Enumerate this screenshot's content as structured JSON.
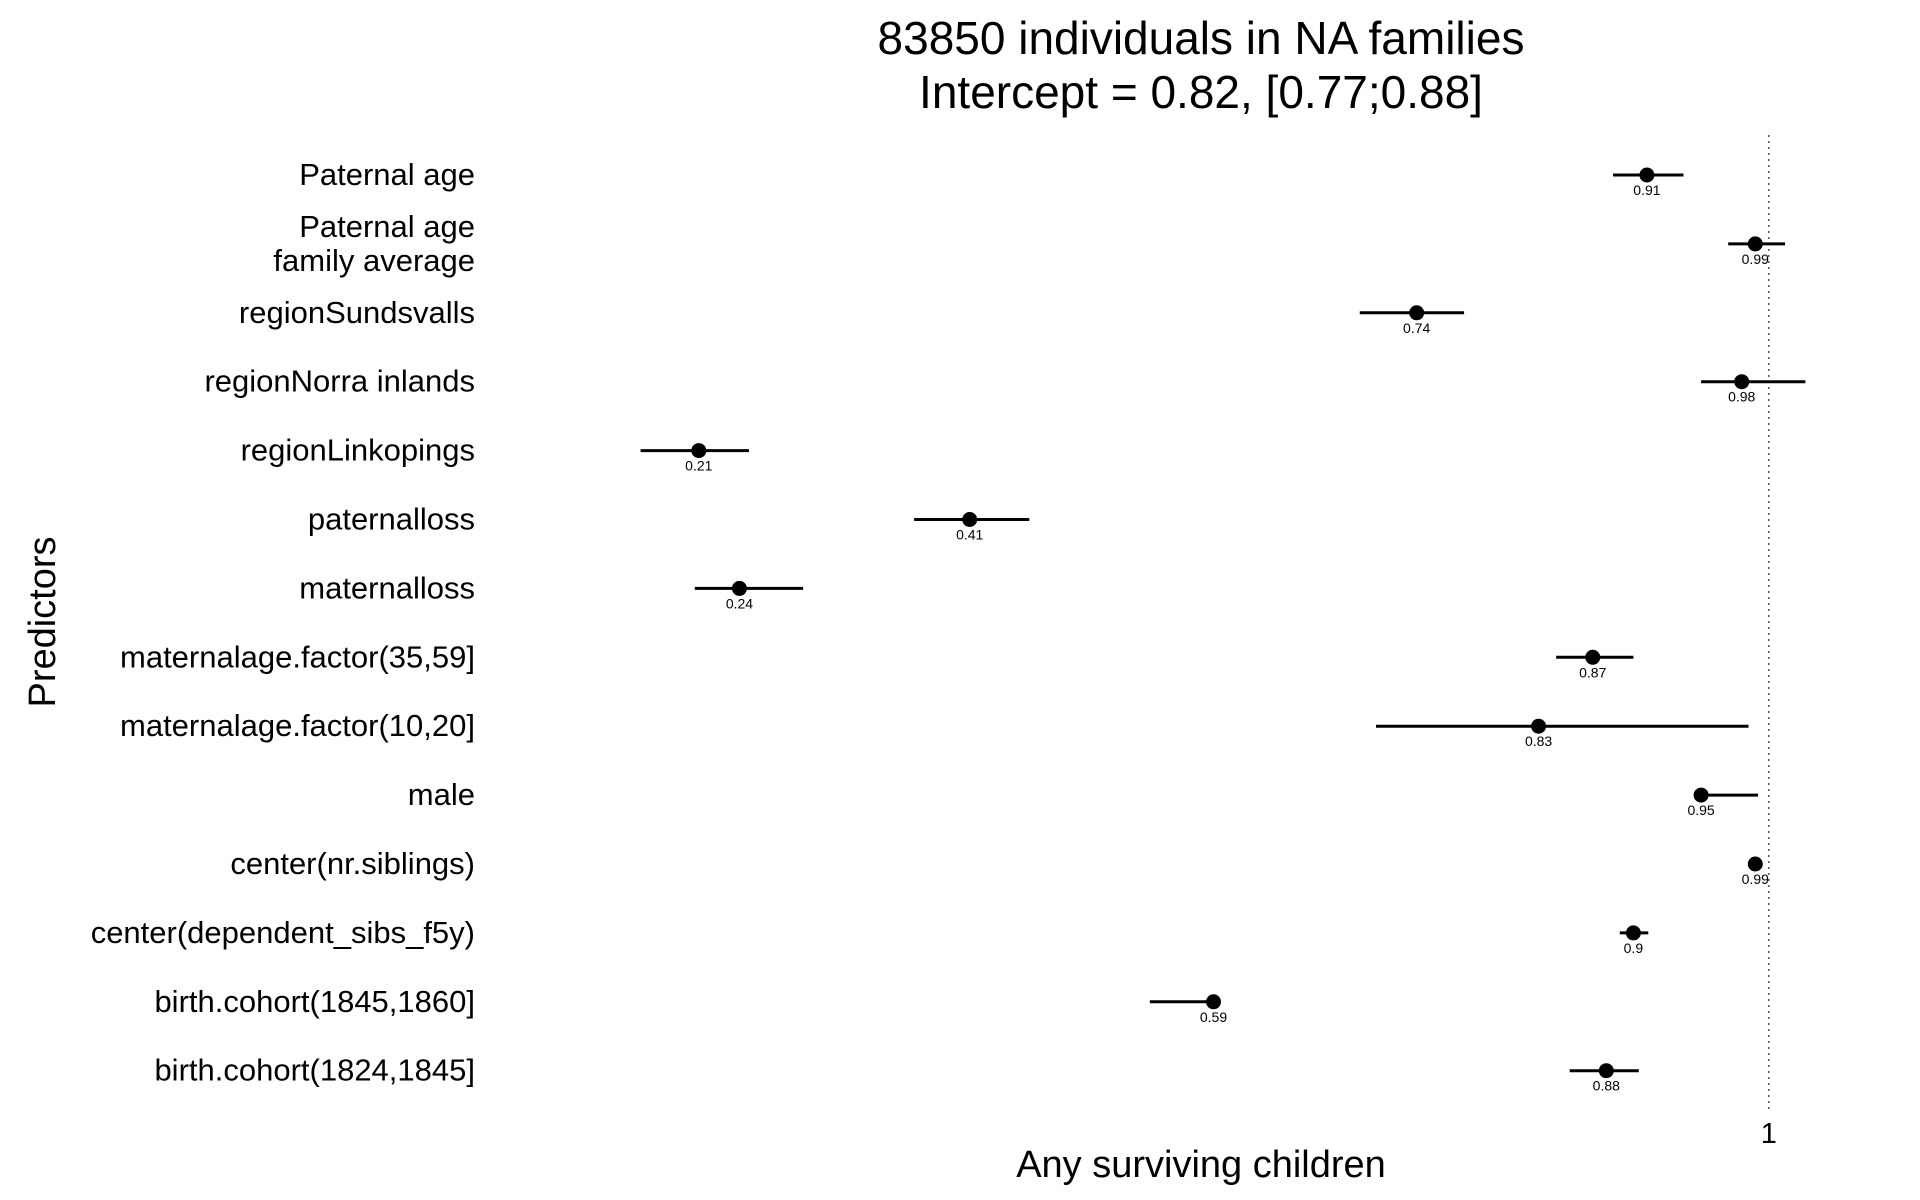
{
  "chart_data": {
    "type": "forest",
    "title_lines": [
      "83850 individuals in NA families",
      "Intercept = 0.82, [0.77;0.88]"
    ],
    "xlabel": "Any surviving children",
    "ylabel": "Predictors",
    "reference_line": 1,
    "xlim": [
      0.14,
      1.04
    ],
    "x_ticks": [
      {
        "value": 1,
        "label": "1"
      }
    ],
    "grid": false,
    "rows": [
      {
        "predictor": [
          "Paternal age"
        ],
        "estimate": 0.91,
        "label": "0.91",
        "ci": [
          0.885,
          0.937
        ]
      },
      {
        "predictor": [
          "Paternal age",
          "family average"
        ],
        "estimate": 0.99,
        "label": "0.99",
        "ci": [
          0.97,
          1.012
        ]
      },
      {
        "predictor": [
          "regionSundsvalls"
        ],
        "estimate": 0.74,
        "label": "0.74",
        "ci": [
          0.698,
          0.775
        ]
      },
      {
        "predictor": [
          "regionNorra inlands"
        ],
        "estimate": 0.98,
        "label": "0.98",
        "ci": [
          0.95,
          1.027
        ]
      },
      {
        "predictor": [
          "regionLinkopings"
        ],
        "estimate": 0.21,
        "label": "0.21",
        "ci": [
          0.167,
          0.247
        ]
      },
      {
        "predictor": [
          "paternalloss"
        ],
        "estimate": 0.41,
        "label": "0.41",
        "ci": [
          0.369,
          0.454
        ]
      },
      {
        "predictor": [
          "maternalloss"
        ],
        "estimate": 0.24,
        "label": "0.24",
        "ci": [
          0.207,
          0.287
        ]
      },
      {
        "predictor": [
          "maternalage.factor(35,59]"
        ],
        "estimate": 0.87,
        "label": "0.87",
        "ci": [
          0.843,
          0.9
        ]
      },
      {
        "predictor": [
          "maternalage.factor(10,20]"
        ],
        "estimate": 0.83,
        "label": "0.83",
        "ci": [
          0.71,
          0.985
        ]
      },
      {
        "predictor": [
          "male"
        ],
        "estimate": 0.95,
        "label": "0.95",
        "ci": [
          0.95,
          0.992
        ]
      },
      {
        "predictor": [
          "center(nr.siblings)"
        ],
        "estimate": 0.99,
        "label": "0.99",
        "ci": [
          0.987,
          0.993
        ]
      },
      {
        "predictor": [
          "center(dependent_sibs_f5y)"
        ],
        "estimate": 0.9,
        "label": "0.9",
        "ci": [
          0.89,
          0.911
        ]
      },
      {
        "predictor": [
          "birth.cohort(1845,1860]"
        ],
        "estimate": 0.59,
        "label": "0.59",
        "ci": [
          0.543,
          0.589
        ]
      },
      {
        "predictor": [
          "birth.cohort(1824,1845]"
        ],
        "estimate": 0.88,
        "label": "0.88",
        "ci": [
          0.853,
          0.904
        ]
      }
    ]
  }
}
